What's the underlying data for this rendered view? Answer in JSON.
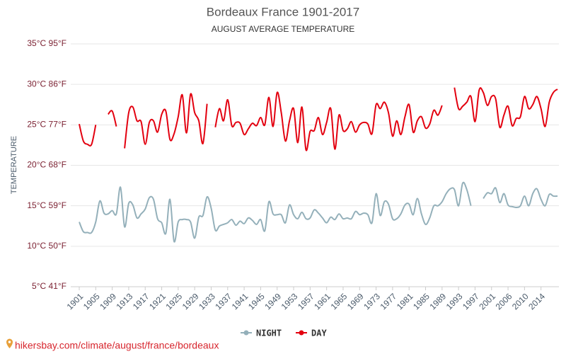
{
  "chart_data": {
    "type": "line",
    "title": "Bordeaux France 1901-2017",
    "subtitle": "AUGUST AVERAGE TEMPERATURE",
    "y_label": "TEMPERATURE",
    "source": "hikersbay.com/climate/august/france/bordeaux",
    "categories": [
      "1901",
      null,
      null,
      null,
      "1905",
      null,
      null,
      null,
      "1909",
      null,
      null,
      null,
      "1913",
      null,
      null,
      null,
      "1917",
      null,
      null,
      null,
      "1921",
      null,
      null,
      null,
      "1925",
      null,
      null,
      null,
      "1929",
      null,
      null,
      null,
      "1933",
      null,
      null,
      null,
      "1937",
      null,
      null,
      null,
      "1941",
      null,
      null,
      null,
      "1945",
      null,
      null,
      null,
      "1949",
      null,
      null,
      null,
      "1953",
      null,
      null,
      null,
      "1957",
      null,
      null,
      null,
      "1961",
      null,
      null,
      null,
      "1965",
      null,
      null,
      null,
      "1969",
      null,
      null,
      null,
      "1973",
      null,
      null,
      null,
      "1977",
      null,
      null,
      null,
      "1981",
      null,
      null,
      null,
      "1985",
      null,
      null,
      null,
      "1989",
      null,
      null,
      null,
      "1993",
      null,
      null,
      null,
      "1997",
      null,
      null,
      null,
      "2001",
      null,
      null,
      null,
      "2006",
      null,
      null,
      null,
      "2010",
      null,
      null,
      null,
      "2014",
      null,
      null,
      null,
      null
    ],
    "series": [
      {
        "name": "NIGHT",
        "color": "#94b0ba",
        "values": [
          13.0,
          11.8,
          11.7,
          11.7,
          13.0,
          15.6,
          14.1,
          14.0,
          14.4,
          14.0,
          17.3,
          12.4,
          15.3,
          15.1,
          13.5,
          14.0,
          14.6,
          16.0,
          15.8,
          13.4,
          12.9,
          11.6,
          15.8,
          10.6,
          13.0,
          13.3,
          13.3,
          13.0,
          11.0,
          13.6,
          13.8,
          16.1,
          14.7,
          12.0,
          12.5,
          12.7,
          12.9,
          13.3,
          12.6,
          13.1,
          12.8,
          13.5,
          13.2,
          12.7,
          13.3,
          11.9,
          15.5,
          14.0,
          13.9,
          13.9,
          12.9,
          15.1,
          13.9,
          13.4,
          14.2,
          13.4,
          13.5,
          14.5,
          14.1,
          13.5,
          12.9,
          13.6,
          13.3,
          14.0,
          13.4,
          13.5,
          13.4,
          14.3,
          13.9,
          14.1,
          13.9,
          12.9,
          16.5,
          13.8,
          15.5,
          15.2,
          13.4,
          13.4,
          14.0,
          15.1,
          15.2,
          13.9,
          15.9,
          14.0,
          12.7,
          13.5,
          15.0,
          15.0,
          15.5,
          16.5,
          17.1,
          17.0,
          15.0,
          17.8,
          17.0,
          15.0,
          null,
          null,
          15.9,
          16.6,
          16.5,
          17.2,
          15.4,
          16.5,
          15.1,
          14.9,
          14.8,
          15.0,
          16.2,
          15.0,
          16.5,
          17.1,
          15.8,
          15.0,
          16.4,
          16.2,
          16.2
        ]
      },
      {
        "name": "DAY",
        "color": "#e3000f",
        "values": [
          25.1,
          23.0,
          22.6,
          22.6,
          25.0,
          null,
          null,
          26.3,
          26.7,
          24.8,
          null,
          22.1,
          26.5,
          27.2,
          25.5,
          25.4,
          22.6,
          25.3,
          25.5,
          24.1,
          26.3,
          26.7,
          23.2,
          23.9,
          26.0,
          28.7,
          24.0,
          28.8,
          26.5,
          25.5,
          22.7,
          27.6,
          null,
          24.7,
          27.0,
          25.5,
          28.1,
          24.9,
          25.3,
          25.2,
          23.8,
          24.5,
          25.2,
          24.9,
          25.9,
          25.0,
          28.4,
          24.8,
          29.0,
          26.5,
          23.0,
          25.5,
          27.0,
          22.8,
          27.2,
          21.9,
          24.2,
          24.3,
          25.9,
          23.8,
          25.3,
          27.0,
          22.0,
          26.2,
          24.3,
          24.5,
          25.4,
          24.1,
          25.0,
          25.3,
          25.1,
          23.9,
          27.5,
          27.0,
          27.8,
          26.5,
          23.6,
          25.5,
          23.8,
          26.0,
          27.5,
          24.1,
          25.5,
          26.0,
          24.6,
          25.1,
          26.8,
          26.2,
          27.4,
          null,
          null,
          29.6,
          27.0,
          27.3,
          27.8,
          28.5,
          25.4,
          29.3,
          29.0,
          27.4,
          28.5,
          28.2,
          24.7,
          26.2,
          27.3,
          24.9,
          25.8,
          26.0,
          28.5,
          27.0,
          27.5,
          28.5,
          27.0,
          24.8,
          27.8,
          29.0,
          29.4
        ]
      }
    ],
    "ylim": [
      5,
      35
    ],
    "yticks": [
      {
        "value": 5,
        "label": "5°C 41°F"
      },
      {
        "value": 10,
        "label": "10°C 50°F"
      },
      {
        "value": 15,
        "label": "15°C 59°F"
      },
      {
        "value": 20,
        "label": "20°C 68°F"
      },
      {
        "value": 25,
        "label": "25°C 77°F"
      },
      {
        "value": 30,
        "label": "30°C 86°F"
      },
      {
        "value": 35,
        "label": "35°C 95°F"
      }
    ],
    "grid": true
  }
}
